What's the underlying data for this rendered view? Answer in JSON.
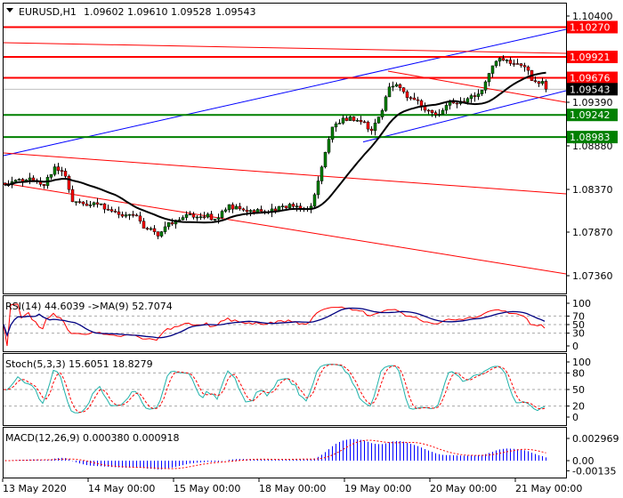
{
  "header": {
    "symbol": "EURUSD,H1",
    "open": "1.09602",
    "high": "1.09610",
    "low": "1.09528",
    "close": "1.09543"
  },
  "colors": {
    "resistance": "#ff0000",
    "support": "#008000",
    "channel": "#0000ff",
    "bull": "#008000",
    "bear": "#ff0000",
    "current": "#000000"
  },
  "price_axis": {
    "ticks": [
      "1.10400",
      "1.09390",
      "1.08880",
      "1.08370",
      "1.07870",
      "1.07360"
    ]
  },
  "price_tags": [
    {
      "label": "1.10270",
      "kind": "resistance"
    },
    {
      "label": "1.09921",
      "kind": "resistance"
    },
    {
      "label": "1.09676",
      "kind": "resistance"
    },
    {
      "label": "1.09543",
      "kind": "current"
    },
    {
      "label": "1.09242",
      "kind": "support"
    },
    {
      "label": "1.08983",
      "kind": "support"
    }
  ],
  "time_axis": {
    "labels": [
      "13 May 2020",
      "14 May 00:00",
      "15 May 00:00",
      "18 May 00:00",
      "19 May 00:00",
      "20 May 00:00",
      "21 May 00:00"
    ]
  },
  "indicators": {
    "rsi": {
      "label": "RSI(14) 44.6039  ->MA(9) 52.7074",
      "levels": [
        "100",
        "70",
        "50",
        "30",
        "0"
      ]
    },
    "stoch": {
      "label": "Stoch(5,3,3) 15.6051 18.8279",
      "levels": [
        "100",
        "80",
        "50",
        "20",
        "0"
      ]
    },
    "macd": {
      "label": "MACD(12,26,9) 0.000380 0.000918",
      "levels": [
        "0.002969",
        "0.00",
        "-0.00135"
      ]
    }
  },
  "chart_data": {
    "type": "candlestick",
    "timeframe": "H1",
    "ylim": [
      1.0736,
      1.104
    ],
    "closes": [
      [
        "13 May 01:00",
        1.08453
      ],
      [
        "13 May 04:00",
        1.08505
      ],
      [
        "13 May 11:00",
        1.08401
      ],
      [
        "13 May 14:00",
        1.08661
      ],
      [
        "13 May 17:00",
        1.08557
      ],
      [
        "13 May 19:00",
        1.08245
      ],
      [
        "13 May 23:00",
        1.08172
      ],
      [
        "14 May 04:00",
        1.08172
      ],
      [
        "14 May 08:00",
        1.0811
      ],
      [
        "14 May 13:00",
        1.08037
      ],
      [
        "14 May 15:00",
        1.0788
      ],
      [
        "14 May 19:00",
        1.0786
      ],
      [
        "14 May 22:00",
        1.07985
      ],
      [
        "15 May 01:00",
        1.08037
      ],
      [
        "15 May 11:00",
        1.08037
      ],
      [
        "15 May 15:00",
        1.08193
      ],
      [
        "15 May 18:00",
        1.0811
      ],
      [
        "15 May 21:00",
        1.08089
      ],
      [
        "18 May 02:00",
        1.08141
      ],
      [
        "18 May 07:00",
        1.08193
      ],
      [
        "18 May 11:00",
        1.0811
      ],
      [
        "18 May 14:00",
        1.08141
      ],
      [
        "18 May 16:00",
        1.08505
      ],
      [
        "18 May 18:00",
        1.08817
      ],
      [
        "18 May 20:00",
        1.0913
      ],
      [
        "19 May 01:00",
        1.09182
      ],
      [
        "19 May 05:00",
        1.0913
      ],
      [
        "19 May 07:00",
        1.09078
      ],
      [
        "19 May 10:00",
        1.09338
      ],
      [
        "19 May 12:00",
        1.09598
      ],
      [
        "19 May 15:00",
        1.09546
      ],
      [
        "19 May 17:00",
        1.09442
      ],
      [
        "19 May 21:00",
        1.09359
      ],
      [
        "20 May 01:00",
        1.09255
      ],
      [
        "20 May 04:00",
        1.09338
      ],
      [
        "20 May 09:00",
        1.0939
      ],
      [
        "20 May 14:00",
        1.09546
      ],
      [
        "20 May 16:00",
        1.09755
      ],
      [
        "20 May 18:00",
        1.09911
      ],
      [
        "20 May 21:00",
        1.09859
      ],
      [
        "21 May 00:00",
        1.09807
      ],
      [
        "21 May 03:00",
        1.09775
      ],
      [
        "21 May 04:00",
        1.0965
      ],
      [
        "21 May 07:00",
        1.0965
      ],
      [
        "21 May 08:00",
        1.09543
      ]
    ],
    "horizontal_levels": [
      {
        "price": 1.1027,
        "kind": "resistance"
      },
      {
        "price": 1.09921,
        "kind": "resistance"
      },
      {
        "price": 1.09676,
        "kind": "resistance"
      },
      {
        "price": 1.09242,
        "kind": "support"
      },
      {
        "price": 1.08983,
        "kind": "support"
      }
    ],
    "trend_lines": [
      {
        "kind": "channel",
        "from": [
          "13 May 00:00",
          1.08765
        ],
        "to": [
          "21 May 14:00",
          1.10244
        ]
      },
      {
        "kind": "channel",
        "from": [
          "19 May 05:00",
          1.08926
        ],
        "to": [
          "21 May 14:00",
          1.09525
        ]
      },
      {
        "kind": "resistance",
        "from": [
          "13 May 00:00",
          1.10088
        ],
        "to": [
          "21 May 14:00",
          1.09963
        ]
      },
      {
        "kind": "resistance",
        "from": [
          "19 May 12:00",
          1.09755
        ],
        "to": [
          "21 May 14:00",
          1.0939
        ]
      },
      {
        "kind": "resistance",
        "from": [
          "13 May 00:00",
          1.08797
        ],
        "to": [
          "21 May 14:00",
          1.08318
        ]
      },
      {
        "kind": "resistance",
        "from": [
          "13 May 00:00",
          1.08443
        ],
        "to": [
          "21 May 14:00",
          1.07381
        ]
      }
    ]
  }
}
